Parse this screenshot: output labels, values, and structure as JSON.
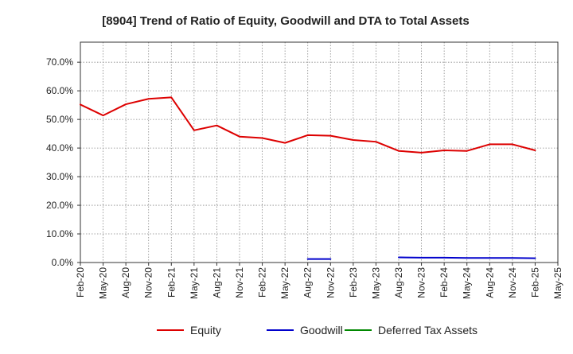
{
  "chart_data": {
    "type": "line",
    "title": "[8904]  Trend of Ratio of Equity, Goodwill and DTA to Total Assets",
    "xlabel": "",
    "ylabel": "",
    "ylim": [
      0,
      0.77
    ],
    "y_ticks": [
      0.0,
      0.1,
      0.2,
      0.3,
      0.4,
      0.5,
      0.6,
      0.7
    ],
    "y_tick_labels": [
      "0.0%",
      "10.0%",
      "20.0%",
      "30.0%",
      "40.0%",
      "50.0%",
      "60.0%",
      "70.0%"
    ],
    "x_tick_labels": [
      "Feb-20",
      "May-20",
      "Aug-20",
      "Nov-20",
      "Feb-21",
      "May-21",
      "Aug-21",
      "Nov-21",
      "Feb-22",
      "May-22",
      "Aug-22",
      "Nov-22",
      "Feb-23",
      "May-23",
      "Aug-23",
      "Nov-23",
      "Feb-24",
      "May-24",
      "Aug-24",
      "Nov-24",
      "Feb-25",
      "May-25"
    ],
    "grid": true,
    "legend_position": "bottom",
    "series": [
      {
        "name": "Equity",
        "color": "#dd0000",
        "values": [
          0.552,
          0.514,
          0.553,
          0.572,
          0.577,
          0.462,
          0.479,
          0.44,
          0.435,
          0.418,
          0.445,
          0.443,
          0.428,
          0.422,
          0.39,
          0.384,
          0.392,
          0.39,
          0.413,
          0.413,
          0.392,
          null
        ]
      },
      {
        "name": "Goodwill",
        "color": "#0000cc",
        "values": [
          null,
          null,
          null,
          null,
          null,
          null,
          null,
          null,
          null,
          null,
          0.012,
          0.012,
          null,
          null,
          0.018,
          0.017,
          0.017,
          0.016,
          0.016,
          0.016,
          0.015,
          null
        ]
      },
      {
        "name": "Deferred Tax Assets",
        "color": "#008800",
        "values": [
          null,
          null,
          null,
          null,
          null,
          null,
          null,
          null,
          null,
          null,
          null,
          null,
          null,
          null,
          null,
          null,
          null,
          null,
          null,
          null,
          null,
          null
        ]
      }
    ]
  }
}
